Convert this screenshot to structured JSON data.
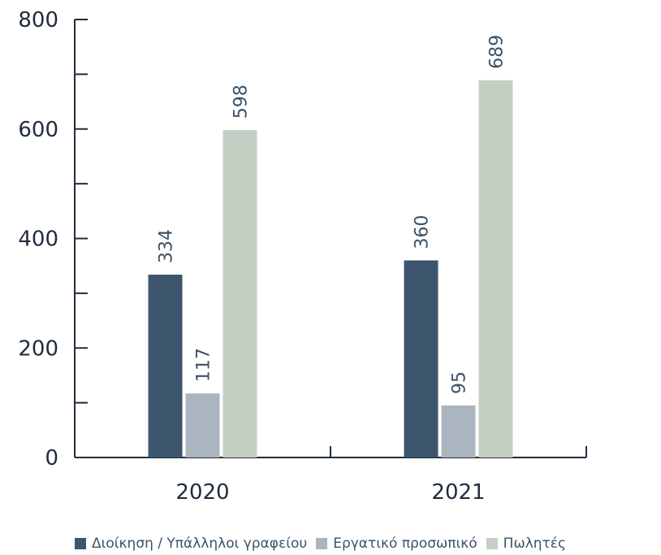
{
  "chart_data": {
    "type": "bar",
    "categories": [
      "2020",
      "2021"
    ],
    "series": [
      {
        "name": "Διοίκηση / Υπάλληλοι γραφείου",
        "values": [
          334,
          360
        ],
        "color": "#3d566e"
      },
      {
        "name": "Εργατικό προσωπικό",
        "values": [
          117,
          95
        ],
        "color": "#aab5c0"
      },
      {
        "name": "Πωλητές",
        "values": [
          598,
          689
        ],
        "color": "#c4cfc4"
      }
    ],
    "ylim": [
      0,
      800
    ],
    "yticks": [
      "0",
      "200",
      "400",
      "600",
      "800"
    ],
    "title": "",
    "xlabel": "",
    "ylabel": "",
    "legend_position": "bottom",
    "grid": false
  }
}
